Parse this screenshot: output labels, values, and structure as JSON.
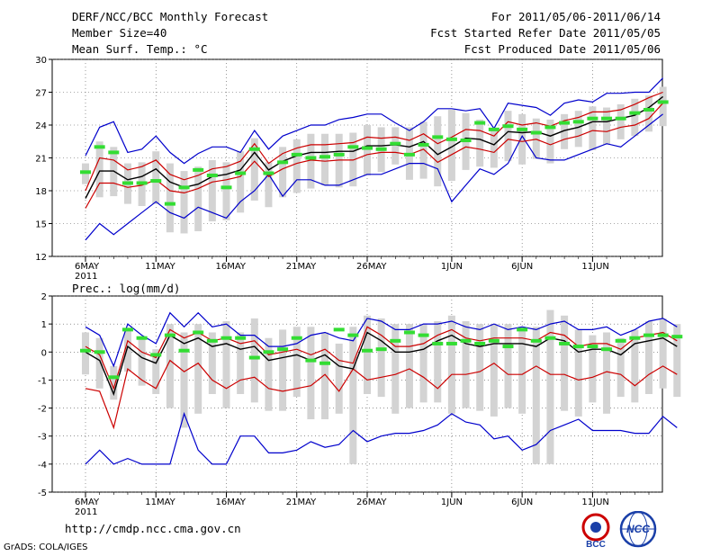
{
  "header": {
    "title": "DERF/NCC/BCC Monthly Forecast",
    "member_size": "Member Size=40",
    "variable": "Mean Surf. Temp.: °C",
    "period": "For 2011/05/06-2011/06/14",
    "refer_date": "Fcst Started Refer Date 2011/05/05",
    "produced_date": "Fcst Produced Date 2011/05/06"
  },
  "footer": {
    "url": "http://cmdp.ncc.cma.gov.cn",
    "credit": "GrADS: COLA/IGES",
    "logo_bcc": "BCC",
    "logo_ncc": "NCC"
  },
  "colors": {
    "band": "#d3d3d3",
    "obs": "#33dd33",
    "mean": "#000000",
    "spread": "#cc0000",
    "range": "#0000cc"
  },
  "chart_data": [
    {
      "type": "line",
      "id": "temperature",
      "title": "Mean Surf. Temp.: °C",
      "x_start_day": 1,
      "x_tick_labels": [
        "6MAY",
        "11MAY",
        "16MAY",
        "21MAY",
        "26MAY",
        "1JUN",
        "6JUN",
        "11JUN"
      ],
      "x_tick_days": [
        1,
        6,
        11,
        16,
        21,
        27,
        32,
        37
      ],
      "x_year_label": "2011",
      "ylim": [
        12,
        30
      ],
      "y_ticks": [
        12,
        15,
        18,
        21,
        24,
        27,
        30
      ],
      "series": [
        {
          "name": "ensemble max",
          "values": [
            13.5,
            15,
            14,
            15,
            16,
            17,
            16,
            15.5,
            16.5,
            16,
            15.5,
            17,
            18,
            19.5,
            17.5,
            19,
            19,
            18.5,
            18.5,
            19,
            19.5,
            19.5,
            20,
            20.5,
            20.5,
            20,
            17,
            18.5,
            20,
            19.5,
            20.5,
            23,
            21,
            20.8,
            20.8,
            21.3,
            21.8,
            22.3,
            22,
            23,
            24,
            25
          ]
        },
        {
          "name": "mean - spread",
          "values": [
            16.4,
            18.7,
            18.7,
            18.3,
            18.5,
            19,
            18,
            17.8,
            18.2,
            18.8,
            19,
            19.3,
            20.7,
            19.3,
            20,
            20.5,
            20.8,
            20.7,
            20.8,
            20.8,
            21.3,
            21.5,
            21.5,
            21.3,
            21.8,
            20.6,
            21.3,
            22,
            21.8,
            21.5,
            22.7,
            22.5,
            22.7,
            22.2,
            22.7,
            23,
            23.5,
            23.4,
            23.8,
            24,
            24.6,
            26
          ]
        },
        {
          "name": "ensemble mean",
          "values": [
            17.3,
            19.8,
            19.8,
            19,
            19.3,
            20,
            18.8,
            18.3,
            18.6,
            19.3,
            19.5,
            19.9,
            21.5,
            19.9,
            20.7,
            21.2,
            21.5,
            21.5,
            21.6,
            21.6,
            22.1,
            22.1,
            22.2,
            22,
            22.5,
            21.3,
            22,
            22.8,
            22.7,
            22.2,
            23.4,
            23.3,
            23.4,
            23,
            23.5,
            23.8,
            24.3,
            24.3,
            24.6,
            24.9,
            25.6,
            26.6
          ]
        },
        {
          "name": "mean + spread",
          "values": [
            18,
            21,
            20.8,
            19.9,
            20.2,
            20.8,
            19.5,
            19,
            19.4,
            20,
            20.2,
            20.7,
            22.3,
            20.5,
            21.4,
            21.9,
            22.2,
            22.2,
            22.3,
            22.4,
            22.9,
            22.8,
            22.9,
            22.6,
            23.2,
            22.3,
            22.9,
            23.6,
            23.5,
            23,
            24.3,
            24,
            24.2,
            23.9,
            24.4,
            24.7,
            25.2,
            25.2,
            25.4,
            25.9,
            26.5,
            27
          ]
        },
        {
          "name": "ensemble min",
          "values": [
            21.2,
            23.8,
            24.3,
            21.5,
            21.8,
            23,
            21.5,
            20.5,
            21.4,
            22,
            22,
            21.5,
            23.5,
            21.8,
            23,
            23.5,
            24,
            24,
            24.5,
            24.7,
            25,
            25,
            24.2,
            23.5,
            24.3,
            25.5,
            25.5,
            25.3,
            25.5,
            23.7,
            26,
            25.8,
            25.6,
            24.9,
            26,
            26.3,
            26.1,
            26.9,
            26.9,
            27,
            27,
            28.3
          ]
        },
        {
          "name": "band high",
          "values": [
            20.5,
            22.5,
            22,
            20.5,
            20.6,
            21.6,
            20.5,
            19.8,
            20.2,
            20.8,
            20.6,
            21.6,
            22.8,
            20.6,
            22,
            22.7,
            23.2,
            23.2,
            23.2,
            23.3,
            24,
            23.8,
            23.8,
            23.8,
            24.3,
            24.8,
            25.4,
            25.1,
            24.5,
            23.6,
            25.3,
            25,
            24.6,
            24.5,
            25,
            25.3,
            25.7,
            25.6,
            25.9,
            26.4,
            26.7,
            27.5
          ]
        },
        {
          "name": "band low",
          "values": [
            18.6,
            17.4,
            17.5,
            16.8,
            16.6,
            16.8,
            14.2,
            14.1,
            14.3,
            15.2,
            15.3,
            16,
            17.1,
            16.5,
            17.4,
            17.8,
            18.2,
            18.5,
            18.3,
            18.4,
            19.4,
            19.7,
            20.4,
            19,
            19.1,
            18.4,
            18.9,
            19.9,
            20.2,
            20.1,
            20.7,
            20.4,
            20.9,
            20.5,
            21.8,
            22,
            21.7,
            22.2,
            22.7,
            23,
            23.4,
            23.9
          ]
        },
        {
          "name": "observed",
          "values": [
            19.7,
            22,
            21.5,
            18.7,
            18.7,
            18.9,
            16.8,
            18.3,
            19.9,
            19.4,
            18.3,
            19.6,
            21.8,
            19.6,
            20.6,
            21.3,
            21,
            21.1,
            21.3,
            22,
            21.9,
            21.8,
            22.3,
            21.3,
            22.2,
            22.9,
            22.7,
            22.6,
            24.2,
            23.6,
            23.9,
            23.6,
            23.3,
            23.8,
            24.2,
            24.3,
            24.6,
            24.6,
            24.6,
            25.1,
            25.4,
            26.1
          ]
        }
      ]
    },
    {
      "type": "line",
      "id": "precipitation",
      "title": "Prec.: log(mm/d)",
      "x_start_day": 1,
      "x_tick_labels": [
        "6MAY",
        "11MAY",
        "16MAY",
        "21MAY",
        "26MAY",
        "1JUN",
        "6JUN",
        "11JUN"
      ],
      "x_tick_days": [
        1,
        6,
        11,
        16,
        21,
        27,
        32,
        37
      ],
      "x_year_label": "2011",
      "ylim": [
        -5,
        2
      ],
      "y_ticks": [
        -5,
        -4,
        -3,
        -2,
        -1,
        0,
        1,
        2
      ],
      "series": [
        {
          "name": "ensemble min",
          "values": [
            -4,
            -3.5,
            -4,
            -3.8,
            -4,
            -4,
            -4,
            -2.2,
            -3.5,
            -4,
            -4,
            -3,
            -3,
            -3.6,
            -3.6,
            -3.5,
            -3.2,
            -3.4,
            -3.3,
            -2.8,
            -3.2,
            -3,
            -2.9,
            -2.9,
            -2.8,
            -2.6,
            -2.2,
            -2.5,
            -2.6,
            -3.1,
            -3,
            -3.5,
            -3.3,
            -2.8,
            -2.6,
            -2.4,
            -2.8,
            -2.8,
            -2.8,
            -2.9,
            -2.9,
            -2.3,
            -2.7
          ]
        },
        {
          "name": "mean - spread",
          "values": [
            -1.3,
            -1.4,
            -2.7,
            -0.6,
            -1,
            -1.3,
            -0.3,
            -0.7,
            -0.4,
            -1,
            -1.3,
            -1,
            -0.9,
            -1.3,
            -1.4,
            -1.3,
            -1.2,
            -0.8,
            -1.4,
            -0.6,
            -1,
            -0.9,
            -0.8,
            -0.6,
            -0.9,
            -1.3,
            -0.8,
            -0.8,
            -0.7,
            -0.4,
            -0.8,
            -0.8,
            -0.5,
            -0.8,
            -0.8,
            -1,
            -0.9,
            -0.7,
            -0.8,
            -1.2,
            -0.8,
            -0.5,
            -0.8
          ]
        },
        {
          "name": "ensemble mean",
          "values": [
            0,
            -0.3,
            -1.5,
            0.2,
            -0.2,
            -0.4,
            0.6,
            0.3,
            0.5,
            0.2,
            0.3,
            0.1,
            0.2,
            -0.3,
            -0.2,
            -0.1,
            -0.3,
            -0.1,
            -0.5,
            -0.6,
            0.7,
            0.4,
            0,
            0,
            0.1,
            0.4,
            0.6,
            0.3,
            0.2,
            0.3,
            0.3,
            0.3,
            0.2,
            0.5,
            0.4,
            0,
            0.1,
            0.1,
            -0.1,
            0.3,
            0.4,
            0.5,
            0.2
          ]
        },
        {
          "name": "mean + spread",
          "values": [
            0.2,
            -0.1,
            -1.3,
            0.4,
            0,
            -0.2,
            0.8,
            0.5,
            0.7,
            0.4,
            0.5,
            0.3,
            0.4,
            -0.1,
            0,
            0.1,
            -0.1,
            0.1,
            -0.3,
            -0.4,
            0.9,
            0.6,
            0.2,
            0.2,
            0.3,
            0.6,
            0.8,
            0.5,
            0.4,
            0.5,
            0.5,
            0.5,
            0.4,
            0.7,
            0.6,
            0.2,
            0.3,
            0.3,
            0.1,
            0.5,
            0.6,
            0.7,
            0.4
          ]
        },
        {
          "name": "ensemble max",
          "values": [
            0.9,
            0.6,
            -0.5,
            1,
            0.6,
            0.3,
            1.4,
            0.9,
            1.4,
            0.9,
            1,
            0.6,
            0.6,
            0.2,
            0.2,
            0.3,
            0.6,
            0.7,
            0.5,
            0.4,
            1.2,
            1.1,
            0.8,
            0.8,
            1,
            1,
            1.1,
            0.9,
            0.8,
            1,
            0.8,
            0.9,
            0.8,
            1,
            1.1,
            0.8,
            0.8,
            0.9,
            0.6,
            0.8,
            1.1,
            1.2,
            0.9
          ]
        },
        {
          "name": "band high",
          "values": [
            0.7,
            0.5,
            -0.5,
            0.8,
            0.5,
            0.1,
            1,
            0.7,
            1,
            0.7,
            1.1,
            0.7,
            1.2,
            0.5,
            0.8,
            0.9,
            0.9,
            0.7,
            0.3,
            0.9,
            1.3,
            1.2,
            1,
            1,
            1,
            1.1,
            1.3,
            1.1,
            1,
            1,
            1,
            0.9,
            0.9,
            1.5,
            1.3,
            0.8,
            0.6,
            0.7,
            0.5,
            0.8,
            1.1,
            1.2,
            1
          ]
        },
        {
          "name": "band low",
          "values": [
            -0.8,
            -1.3,
            -1.7,
            -0.7,
            -1.2,
            -1.5,
            -2,
            -2.7,
            -2.2,
            -1.5,
            -2,
            -1.5,
            -1.8,
            -2.1,
            -2.1,
            -1.6,
            -2.4,
            -2.4,
            -2.2,
            -4,
            -1.5,
            -1.6,
            -2.2,
            -2,
            -1.8,
            -1.8,
            -2.2,
            -2,
            -2.1,
            -2.3,
            -2,
            -2.2,
            -4,
            -4,
            -2.1,
            -2.3,
            -1.8,
            -2.2,
            -1.6,
            -1.8,
            -1.5,
            -1.3,
            -1.6
          ]
        },
        {
          "name": "observed",
          "values": [
            0.05,
            0,
            -0.9,
            0.8,
            0.5,
            -0.1,
            0.6,
            0.05,
            0.7,
            0.4,
            0.5,
            0.5,
            -0.2,
            0,
            0.1,
            0.5,
            -0.3,
            -0.4,
            0.8,
            0.6,
            0.05,
            0.1,
            0.4,
            0.7,
            0.6,
            0.3,
            0.3,
            0.4,
            0.3,
            0.4,
            0.2,
            0.8,
            0.4,
            0.5,
            0.3,
            0.2,
            0.2,
            0.1,
            0.4,
            0.5,
            0.6,
            0.6,
            0.55
          ]
        }
      ]
    }
  ]
}
